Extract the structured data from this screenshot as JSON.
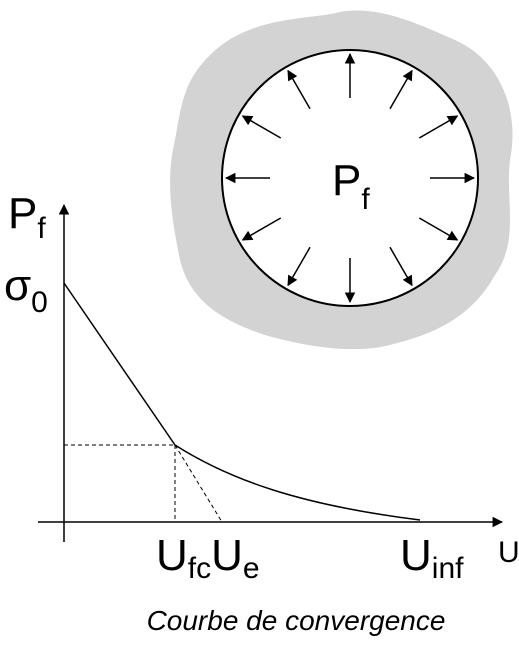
{
  "circle_label": {
    "main": "P",
    "sub": "f"
  },
  "y_axis_label": {
    "main": "P",
    "sub": "f"
  },
  "y_marker": {
    "main": "σ",
    "sub": "0"
  },
  "x_markers": [
    {
      "main": "U",
      "sub": "fc"
    },
    {
      "main": "U",
      "sub": "e"
    },
    {
      "main": "U",
      "sub": "inf"
    }
  ],
  "x_axis_label": "U",
  "caption": "Courbe de convergence"
}
